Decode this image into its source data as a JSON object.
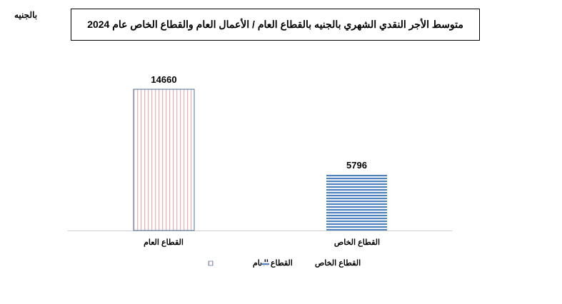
{
  "unit_label": "بالجنيه",
  "chart_data": {
    "type": "bar",
    "title": "متوسط الأجر النقدي الشهري بالجنيه بالقطاع العام / الأعمال العام والقطاع الخاص عام 2024",
    "categories": [
      "القطاع العام",
      "القطاع الخاص"
    ],
    "values": [
      14660,
      5796
    ],
    "data_labels": [
      "14660",
      "5796"
    ],
    "ylim": [
      0,
      16000
    ],
    "grid": false,
    "legend_position": "bottom",
    "legend": [
      "القطاع العام",
      "القطاع الخاص"
    ],
    "colors": {
      "public_stripes": "#e8b4b8",
      "public_border": "#4f6fa0",
      "private_stripes": "#4f81bd"
    }
  }
}
